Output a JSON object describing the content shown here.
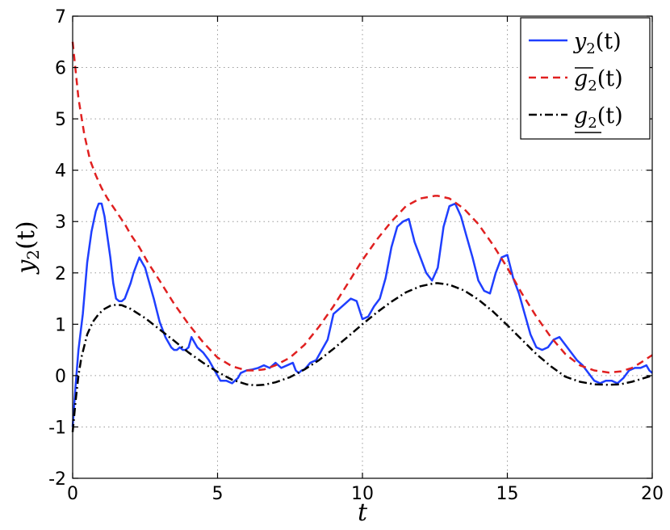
{
  "chart_data": {
    "type": "line",
    "xlabel": "t",
    "ylabel": "y",
    "ylabel_sub": "2",
    "ylabel_suffix": "(t)",
    "xlim": [
      0,
      20
    ],
    "ylim": [
      -2,
      7
    ],
    "x_ticks": [
      0,
      5,
      10,
      15,
      20
    ],
    "y_ticks": [
      -2,
      -1,
      0,
      1,
      2,
      3,
      4,
      5,
      6,
      7
    ],
    "grid": true,
    "legend_position": "top-right",
    "series": [
      {
        "name": "y2(t)",
        "legend_base": "y",
        "legend_sub": "2",
        "legend_suffix": "(t)",
        "color": "#1f3fff",
        "style": "solid",
        "x": [
          0,
          0.1,
          0.2,
          0.35,
          0.5,
          0.65,
          0.8,
          0.9,
          1.0,
          1.1,
          1.2,
          1.3,
          1.4,
          1.5,
          1.6,
          1.7,
          1.8,
          1.9,
          2.0,
          2.1,
          2.2,
          2.3,
          2.4,
          2.5,
          2.6,
          2.8,
          3.0,
          3.2,
          3.4,
          3.5,
          3.6,
          3.7,
          3.8,
          3.9,
          4.0,
          4.1,
          4.2,
          4.3,
          4.4,
          4.5,
          4.7,
          4.9,
          5.1,
          5.3,
          5.5,
          5.6,
          5.7,
          5.8,
          6.0,
          6.2,
          6.4,
          6.6,
          6.8,
          7.0,
          7.2,
          7.4,
          7.6,
          7.7,
          7.8,
          7.9,
          8.0,
          8.2,
          8.4,
          8.6,
          8.8,
          9.0,
          9.2,
          9.4,
          9.6,
          9.8,
          10.0,
          10.2,
          10.4,
          10.6,
          10.8,
          11.0,
          11.2,
          11.4,
          11.6,
          11.8,
          12.0,
          12.2,
          12.4,
          12.6,
          12.8,
          13.0,
          13.2,
          13.4,
          13.6,
          13.8,
          14.0,
          14.2,
          14.4,
          14.6,
          14.8,
          15.0,
          15.2,
          15.4,
          15.6,
          15.8,
          16.0,
          16.2,
          16.4,
          16.6,
          16.8,
          17.0,
          17.2,
          17.4,
          17.6,
          17.8,
          18.0,
          18.2,
          18.4,
          18.6,
          18.8,
          19.0,
          19.2,
          19.4,
          19.6,
          19.8,
          19.9,
          20.0
        ],
        "values": [
          -1.0,
          -0.2,
          0.5,
          1.2,
          2.2,
          2.8,
          3.2,
          3.35,
          3.35,
          3.1,
          2.7,
          2.3,
          1.8,
          1.5,
          1.45,
          1.45,
          1.5,
          1.65,
          1.8,
          2.0,
          2.15,
          2.3,
          2.2,
          2.1,
          1.9,
          1.5,
          1.05,
          0.75,
          0.55,
          0.5,
          0.5,
          0.55,
          0.5,
          0.5,
          0.55,
          0.75,
          0.65,
          0.55,
          0.5,
          0.45,
          0.3,
          0.1,
          -0.1,
          -0.1,
          -0.15,
          -0.1,
          -0.05,
          0.05,
          0.1,
          0.12,
          0.15,
          0.2,
          0.15,
          0.25,
          0.15,
          0.2,
          0.25,
          0.1,
          0.05,
          0.1,
          0.12,
          0.25,
          0.3,
          0.5,
          0.7,
          1.2,
          1.3,
          1.4,
          1.5,
          1.45,
          1.1,
          1.15,
          1.35,
          1.5,
          1.9,
          2.5,
          2.9,
          3.0,
          3.05,
          2.6,
          2.3,
          2.0,
          1.85,
          2.1,
          2.9,
          3.3,
          3.35,
          3.1,
          2.7,
          2.3,
          1.85,
          1.65,
          1.6,
          2.0,
          2.3,
          2.35,
          1.9,
          1.6,
          1.2,
          0.8,
          0.55,
          0.5,
          0.55,
          0.7,
          0.75,
          0.6,
          0.45,
          0.3,
          0.2,
          0.05,
          -0.1,
          -0.15,
          -0.1,
          -0.1,
          -0.15,
          -0.05,
          0.1,
          0.15,
          0.15,
          0.2,
          0.1,
          0.05
        ]
      },
      {
        "name": "g2(t) upper",
        "legend_base": "g",
        "legend_sub": "2",
        "legend_suffix": "(t)",
        "legend_mark": "overline",
        "color": "#e02020",
        "style": "dashed",
        "x": [
          0,
          0.2,
          0.4,
          0.6,
          0.8,
          1.0,
          1.2,
          1.5,
          1.8,
          2.0,
          2.3,
          2.6,
          3.0,
          3.5,
          4.0,
          4.5,
          5.0,
          5.5,
          6.0,
          6.3,
          6.6,
          7.0,
          7.5,
          8.0,
          8.5,
          9.0,
          9.5,
          10.0,
          10.5,
          11.0,
          11.5,
          12.0,
          12.5,
          12.6,
          13.0,
          13.5,
          14.0,
          14.5,
          15.0,
          15.5,
          16.0,
          16.5,
          17.0,
          17.5,
          18.0,
          18.5,
          18.9,
          19.3,
          19.6,
          20.0
        ],
        "values": [
          6.5,
          5.4,
          4.7,
          4.2,
          3.9,
          3.65,
          3.45,
          3.2,
          2.95,
          2.75,
          2.5,
          2.2,
          1.85,
          1.4,
          1.0,
          0.65,
          0.35,
          0.18,
          0.1,
          0.1,
          0.12,
          0.2,
          0.35,
          0.6,
          0.95,
          1.35,
          1.8,
          2.25,
          2.65,
          3.0,
          3.3,
          3.45,
          3.5,
          3.5,
          3.45,
          3.25,
          2.95,
          2.55,
          2.1,
          1.6,
          1.15,
          0.75,
          0.42,
          0.2,
          0.1,
          0.06,
          0.08,
          0.15,
          0.25,
          0.4
        ]
      },
      {
        "name": "g2(t) lower",
        "legend_base": "g",
        "legend_sub": "2",
        "legend_suffix": "(t)",
        "legend_mark": "underline",
        "color": "#000000",
        "style": "dashdot",
        "x": [
          0,
          0.1,
          0.2,
          0.3,
          0.5,
          0.7,
          0.9,
          1.1,
          1.3,
          1.5,
          1.7,
          2.0,
          2.5,
          3.0,
          3.5,
          4.0,
          4.5,
          5.0,
          5.5,
          6.0,
          6.3,
          6.6,
          7.0,
          7.5,
          8.0,
          8.5,
          9.0,
          9.5,
          10.0,
          10.5,
          11.0,
          11.5,
          12.0,
          12.5,
          12.6,
          13.0,
          13.5,
          14.0,
          14.5,
          15.0,
          15.5,
          16.0,
          16.5,
          17.0,
          17.5,
          18.0,
          18.5,
          18.9,
          19.3,
          19.6,
          20.0
        ],
        "values": [
          -1.1,
          -0.5,
          0.0,
          0.35,
          0.8,
          1.05,
          1.2,
          1.3,
          1.36,
          1.38,
          1.37,
          1.3,
          1.12,
          0.9,
          0.68,
          0.45,
          0.25,
          0.07,
          -0.08,
          -0.17,
          -0.19,
          -0.18,
          -0.13,
          -0.03,
          0.12,
          0.3,
          0.52,
          0.76,
          1.0,
          1.23,
          1.44,
          1.62,
          1.74,
          1.8,
          1.8,
          1.77,
          1.66,
          1.48,
          1.25,
          0.98,
          0.7,
          0.42,
          0.18,
          -0.02,
          -0.12,
          -0.17,
          -0.18,
          -0.17,
          -0.12,
          -0.07,
          0.0
        ]
      }
    ]
  }
}
